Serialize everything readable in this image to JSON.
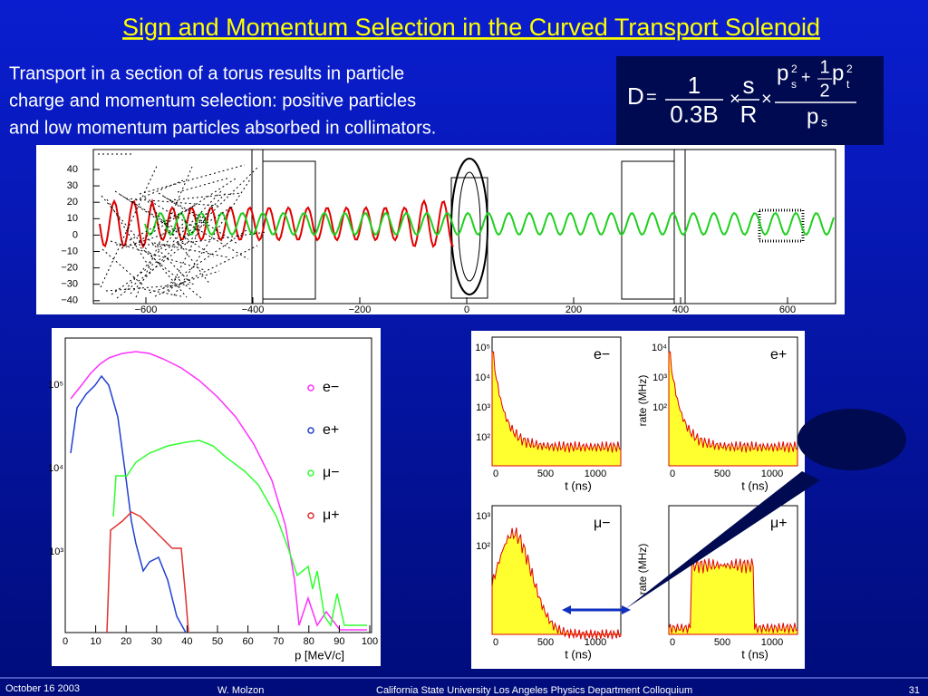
{
  "title": "Sign and Momentum Selection in the Curved Transport Solenoid",
  "body": [
    "Transport in a section of a torus results in particle",
    "charge and momentum selection: positive particles",
    "and low momentum particles absorbed in collimators."
  ],
  "formula": {
    "lhs": "D",
    "eq": "=",
    "num1": "1",
    "den1": "0.3B",
    "times1": "×",
    "num2": "s",
    "den2": "R",
    "times2": "×",
    "ps": "p",
    "ps_sub": "s",
    "ps_sup": "2",
    "plus": "+",
    "half_num": "1",
    "half_den": "2",
    "pt": "p",
    "pt_sub": "t",
    "pt_sup": "2",
    "den3": "p",
    "den3_sub": "s"
  },
  "top_plot": {
    "yticks": [
      "40",
      "30",
      "20",
      "10",
      "0",
      "−10",
      "−20",
      "−30",
      "−40"
    ],
    "xticks": [
      "−600",
      "−400",
      "−200",
      "0",
      "200",
      "400",
      "600"
    ]
  },
  "left_plot": {
    "yticks": [
      "10⁵",
      "10⁴",
      "10³"
    ],
    "xticks": [
      "0",
      "10",
      "20",
      "30",
      "40",
      "50",
      "60",
      "70",
      "80",
      "90",
      "100"
    ],
    "xlabel": "p [MeV/c]",
    "legend": [
      "e−",
      "e+",
      "μ−",
      "μ+"
    ]
  },
  "right_plot": {
    "ylabel": "rate (MHz)",
    "xlabel": "t (ns)",
    "xticks": [
      "0",
      "500",
      "1000"
    ],
    "panels": [
      {
        "label": "e−",
        "yticks": [
          "10⁵",
          "10⁴",
          "10³",
          "10²"
        ]
      },
      {
        "label": "e+",
        "yticks": [
          "10⁴",
          "10³",
          "10²"
        ]
      },
      {
        "label": "μ−",
        "yticks": [
          "10³",
          "10²"
        ]
      },
      {
        "label": "μ+",
        "yticks": []
      }
    ]
  },
  "footer": {
    "date": "October 16 2003",
    "author": "W. Molzon",
    "venue": "California State University Los Angeles Physics Department  Colloquium",
    "page": "31"
  }
}
